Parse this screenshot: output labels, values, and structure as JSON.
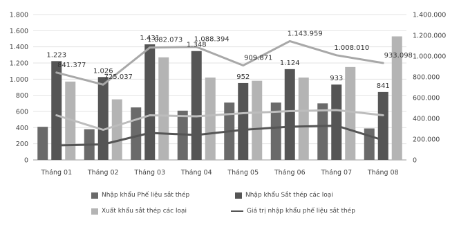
{
  "chart_data": {
    "type": "bar",
    "categories": [
      "Tháng 01",
      "Tháng 02",
      "Tháng 03",
      "Tháng 04",
      "Tháng 05",
      "Tháng 06",
      "Tháng 07",
      "Tháng 08"
    ],
    "left_axis": {
      "ylim": [
        0,
        1800
      ],
      "ticks": [
        0,
        200,
        400,
        600,
        800,
        1000,
        1200,
        1400,
        1600,
        1800
      ],
      "tick_labels": [
        "0",
        "200",
        "400",
        "600",
        "800",
        "1.000",
        "1.200",
        "1.400",
        "1.600",
        "1.800"
      ]
    },
    "right_axis": {
      "ylim": [
        0,
        1400000
      ],
      "ticks": [
        0,
        200000,
        400000,
        600000,
        800000,
        1000000,
        1200000,
        1400000
      ],
      "tick_labels": [
        "0",
        "200.000",
        "400.000",
        "600.000",
        "800.000",
        "1.000.000",
        "1.200.000",
        "1.400.000"
      ]
    },
    "series": [
      {
        "name": "Nhập khẩu Phế liệu sắt thép",
        "kind": "bar",
        "axis": "left",
        "color": "#6a6a6a",
        "values": [
          410,
          380,
          650,
          610,
          710,
          710,
          700,
          390
        ]
      },
      {
        "name": "Nhập khẩu Sắt thép các loại",
        "kind": "bar",
        "axis": "left",
        "color": "#555555",
        "values": [
          1223,
          1026,
          1431,
          1348,
          952,
          1124,
          933,
          841
        ],
        "labels": [
          "1.223",
          "1.026",
          "1.431",
          "1.348",
          "952",
          "1.124",
          "933",
          "841"
        ]
      },
      {
        "name": "Xuất khẩu sắt thép các loại",
        "kind": "bar",
        "axis": "left",
        "color": "#b4b4b4",
        "values": [
          970,
          750,
          1270,
          1020,
          980,
          1020,
          1150,
          1530
        ]
      },
      {
        "name": "Giá trị nhập khẩu phế liệu sắt thép",
        "kind": "line",
        "axis": "right",
        "color": "#555555",
        "values": [
          140000,
          150000,
          260000,
          240000,
          290000,
          320000,
          330000,
          190000
        ]
      },
      {
        "name": "",
        "kind": "line",
        "axis": "right",
        "color": "#a8a8a8",
        "values": [
          841377,
          725037,
          1082073,
          1088394,
          909871,
          1143959,
          1008010,
          933098
        ],
        "labels": [
          "841.377",
          "725.037",
          "1.082.073",
          "1.088.394",
          "909.871",
          "1.143.959",
          "1.008.010",
          "933.098"
        ]
      },
      {
        "name": "",
        "kind": "line",
        "axis": "right",
        "color": "#bdbdbd",
        "values": [
          430000,
          290000,
          430000,
          420000,
          450000,
          470000,
          480000,
          430000
        ]
      }
    ]
  }
}
